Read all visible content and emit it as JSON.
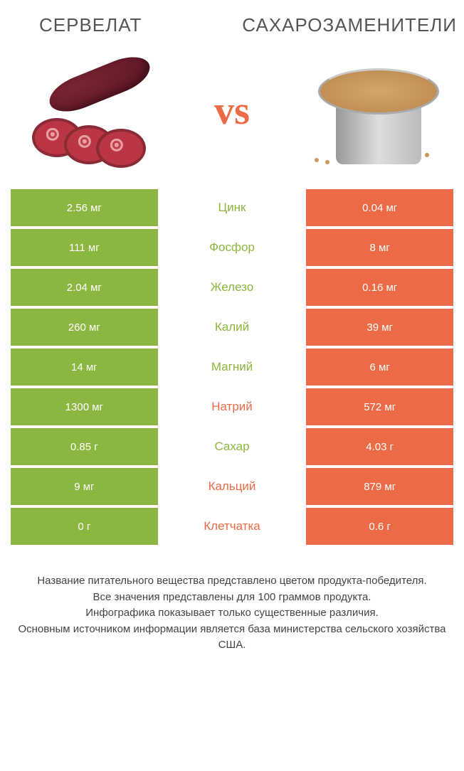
{
  "colors": {
    "green": "#8bb63f",
    "orange": "#ec6a45",
    "background": "#ffffff"
  },
  "product_left": {
    "title": "СЕРВЕЛАТ"
  },
  "product_right": {
    "title": "САХАРОЗАМЕНИТЕЛИ"
  },
  "vs_label": "vs",
  "rows": [
    {
      "left": "2.56 мг",
      "label": "Цинк",
      "right": "0.04 мг",
      "winner": "green"
    },
    {
      "left": "111 мг",
      "label": "Фосфор",
      "right": "8 мг",
      "winner": "green"
    },
    {
      "left": "2.04 мг",
      "label": "Железо",
      "right": "0.16 мг",
      "winner": "green"
    },
    {
      "left": "260 мг",
      "label": "Калий",
      "right": "39 мг",
      "winner": "green"
    },
    {
      "left": "14 мг",
      "label": "Магний",
      "right": "6 мг",
      "winner": "green"
    },
    {
      "left": "1300 мг",
      "label": "Натрий",
      "right": "572 мг",
      "winner": "orange"
    },
    {
      "left": "0.85 г",
      "label": "Сахар",
      "right": "4.03 г",
      "winner": "green"
    },
    {
      "left": "9 мг",
      "label": "Кальций",
      "right": "879 мг",
      "winner": "orange"
    },
    {
      "left": "0 г",
      "label": "Клетчатка",
      "right": "0.6 г",
      "winner": "orange"
    }
  ],
  "footnote_lines": [
    "Название питательного вещества представлено цветом продукта-победителя.",
    "Все значения представлены для 100 граммов продукта.",
    "Инфографика показывает только существенные различия.",
    "Основным источником информации является база министерства сельского хозяйства США."
  ]
}
